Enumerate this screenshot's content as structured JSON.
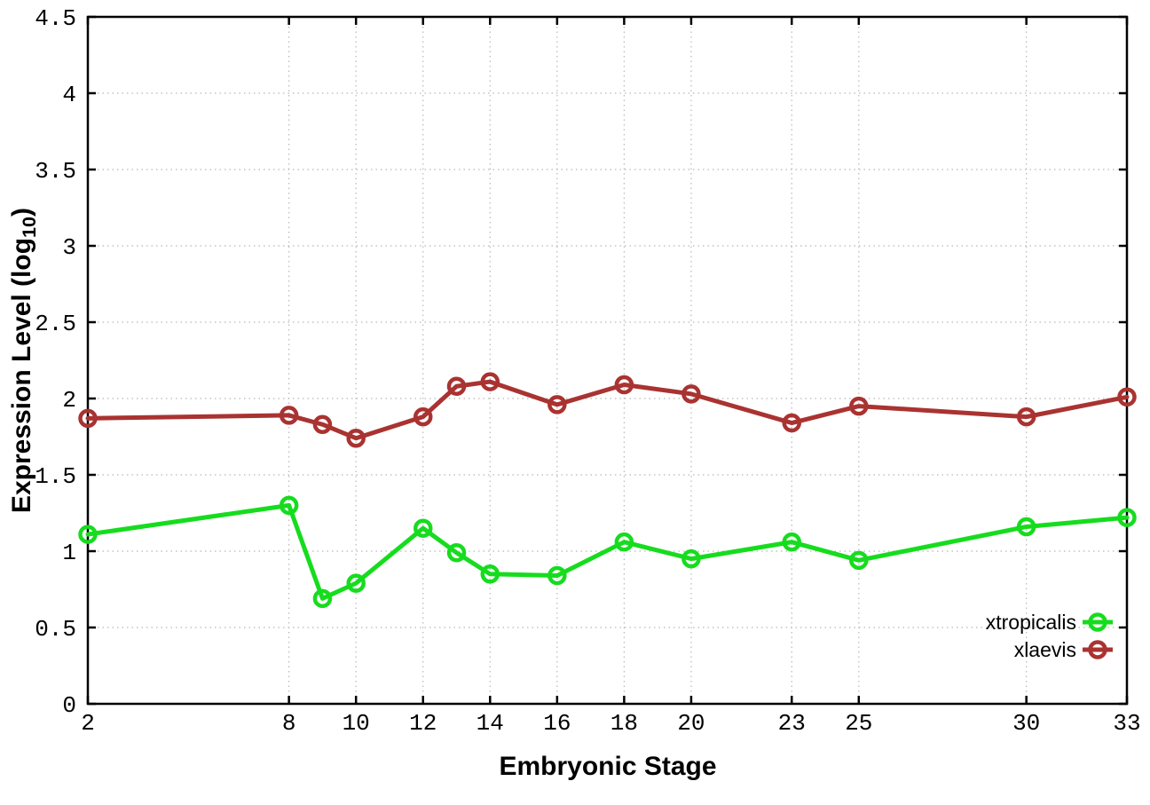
{
  "labels": {
    "xlabel": "Embryonic Stage",
    "ylabel_prefix": "Expression Level (log",
    "ylabel_sub": "10",
    "ylabel_suffix": ")"
  },
  "chart_data": {
    "type": "line",
    "title": "",
    "xlabel": "Embryonic Stage",
    "ylabel": "Expression Level (log10)",
    "xlim": [
      2,
      33
    ],
    "ylim": [
      0,
      4.5
    ],
    "grid": true,
    "grid_color": "#b8b8b8",
    "border_color": "#000000",
    "legend_position": "bottom-right-inside",
    "x": [
      2,
      8,
      9,
      10,
      12,
      13,
      14,
      16,
      18,
      20,
      23,
      25,
      30,
      33
    ],
    "xticks": [
      {
        "value": 2,
        "label": "2"
      },
      {
        "value": 8,
        "label": "8"
      },
      {
        "value": 10,
        "label": "10"
      },
      {
        "value": 12,
        "label": "12"
      },
      {
        "value": 14,
        "label": "14"
      },
      {
        "value": 16,
        "label": "16"
      },
      {
        "value": 18,
        "label": "18"
      },
      {
        "value": 20,
        "label": "20"
      },
      {
        "value": 23,
        "label": "23"
      },
      {
        "value": 25,
        "label": "25"
      },
      {
        "value": 30,
        "label": "30"
      },
      {
        "value": 33,
        "label": "33"
      }
    ],
    "yticks": [
      {
        "value": 0,
        "label": "0"
      },
      {
        "value": 0.5,
        "label": "0.5"
      },
      {
        "value": 1,
        "label": "1"
      },
      {
        "value": 1.5,
        "label": "1.5"
      },
      {
        "value": 2,
        "label": "2"
      },
      {
        "value": 2.5,
        "label": "2.5"
      },
      {
        "value": 3,
        "label": "3"
      },
      {
        "value": 3.5,
        "label": "3.5"
      },
      {
        "value": 4,
        "label": "4"
      },
      {
        "value": 4.5,
        "label": "4.5"
      }
    ],
    "series": [
      {
        "name": "xtropicalis",
        "color": "#16dc1e",
        "marker": "open-circle",
        "values": [
          1.11,
          1.3,
          0.69,
          0.79,
          1.15,
          0.99,
          0.85,
          0.84,
          1.06,
          0.95,
          1.06,
          0.94,
          1.16,
          1.22
        ]
      },
      {
        "name": "xlaevis",
        "color": "#a93331",
        "marker": "open-circle",
        "values": [
          1.87,
          1.89,
          1.83,
          1.74,
          1.88,
          2.08,
          2.11,
          1.96,
          2.09,
          2.03,
          1.84,
          1.95,
          1.88,
          2.01
        ]
      }
    ]
  }
}
